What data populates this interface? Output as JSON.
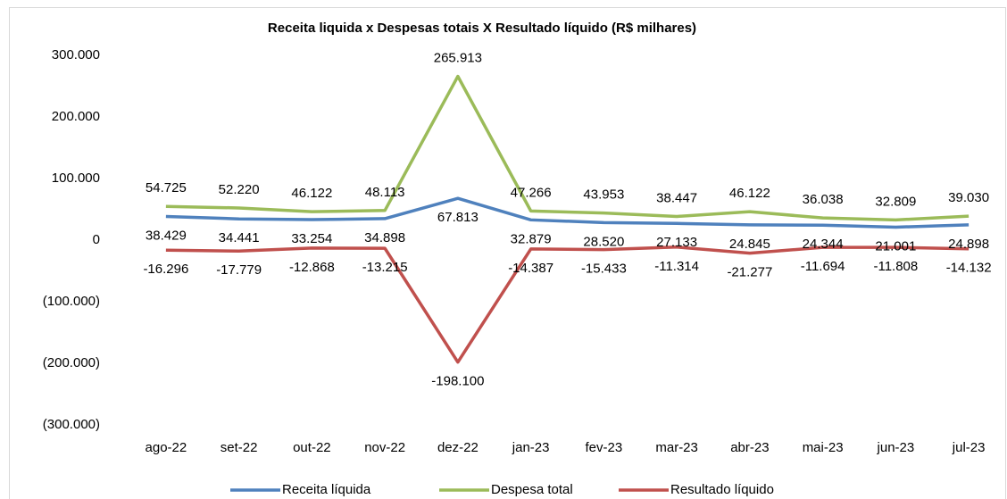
{
  "chart_data": {
    "type": "line",
    "title": "Receita liquida x Despesas totais X Resultado líquido (R$ milhares)",
    "categories": [
      "ago-22",
      "set-22",
      "out-22",
      "nov-22",
      "dez-22",
      "jan-23",
      "fev-23",
      "mar-23",
      "abr-23",
      "mai-23",
      "jun-23",
      "jul-23"
    ],
    "series": [
      {
        "name": "Receita líquida",
        "color": "#4f81bd",
        "values": [
          38429,
          34441,
          33254,
          34898,
          67813,
          32879,
          28520,
          27133,
          24845,
          24344,
          21001,
          24898
        ],
        "value_labels": [
          "38.429",
          "34.441",
          "33.254",
          "34.898",
          "67.813",
          "32.879",
          "28.520",
          "27.133",
          "24.845",
          "24.344",
          "21.001",
          "24.898"
        ]
      },
      {
        "name": "Despesa total",
        "color": "#9bbb59",
        "values": [
          54725,
          52220,
          46122,
          48113,
          265913,
          47266,
          43953,
          38447,
          46122,
          36038,
          32809,
          39030
        ],
        "value_labels": [
          "54.725",
          "52.220",
          "46.122",
          "48.113",
          "265.913",
          "47.266",
          "43.953",
          "38.447",
          "46.122",
          "36.038",
          "32.809",
          "39.030"
        ]
      },
      {
        "name": "Resultado líquido",
        "color": "#c0504d",
        "values": [
          -16296,
          -17779,
          -12868,
          -13215,
          -198100,
          -14387,
          -15433,
          -11314,
          -21277,
          -11694,
          -11808,
          -14132
        ],
        "value_labels": [
          "-16.296",
          "-17.779",
          "-12.868",
          "-13.215",
          "-198.100",
          "-14.387",
          "-15.433",
          "-11.314",
          "-21.277",
          "-11.694",
          "-11.808",
          "-14.132"
        ]
      }
    ],
    "ylim": [
      -300000,
      300000
    ],
    "yticks": [
      {
        "value": -300000,
        "label": "(300.000)"
      },
      {
        "value": -200000,
        "label": "(200.000)"
      },
      {
        "value": -100000,
        "label": "(100.000)"
      },
      0,
      {
        "value": 100000,
        "label": "100.000"
      },
      {
        "value": 200000,
        "label": "200.000"
      },
      {
        "value": 300000,
        "label": "300.000"
      }
    ],
    "grid": false,
    "legend": "bottom"
  }
}
